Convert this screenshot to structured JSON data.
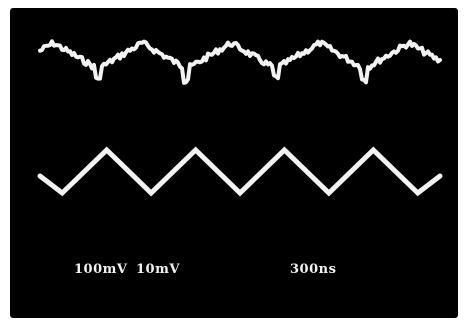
{
  "readouts": {
    "channel1_scale": "100mV",
    "channel2_scale": "10mV",
    "timebase": "300ns"
  },
  "colors": {
    "screen": "#000000",
    "trace": "#f2f2f2",
    "border": "#ffffff"
  },
  "traces": {
    "top": {
      "style": "noisy-triangle",
      "periods": 4.5
    },
    "bottom": {
      "style": "triangle",
      "periods": 4.5
    }
  }
}
